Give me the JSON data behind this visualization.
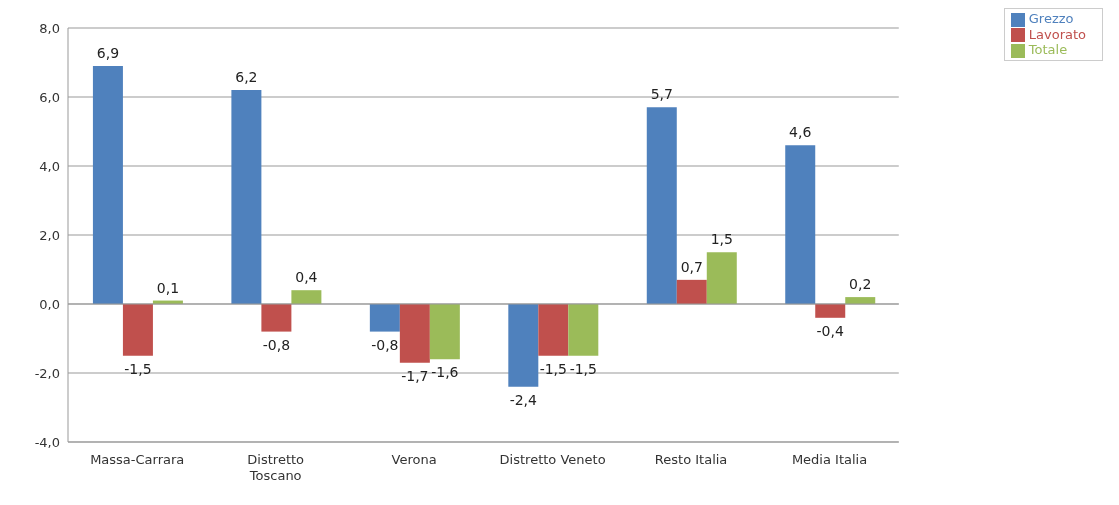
{
  "chart_data": {
    "type": "bar",
    "categories": [
      "Massa-Carrara",
      "Distretto Toscano",
      "Verona",
      "Distretto Veneto",
      "Resto Italia",
      "Media Italia"
    ],
    "series": [
      {
        "name": "Grezzo",
        "color": "#4f81bd",
        "values": [
          6.9,
          6.2,
          -0.8,
          -2.4,
          5.7,
          4.6
        ],
        "value_labels": [
          "6,9",
          "6,2",
          "-0,8",
          "-2,4",
          "5,7",
          "4,6"
        ]
      },
      {
        "name": "Lavorato",
        "color": "#c0504d",
        "values": [
          -1.5,
          -0.8,
          -1.7,
          -1.5,
          0.7,
          -0.4
        ],
        "value_labels": [
          "-1,5",
          "-0,8",
          "-1,7",
          "-1,5",
          "0,7",
          "-0,4"
        ]
      },
      {
        "name": "Totale",
        "color": "#9bbb59",
        "values": [
          0.1,
          0.4,
          -1.6,
          -1.5,
          1.5,
          0.2
        ],
        "value_labels": [
          "0,1",
          "0,4",
          "-1,6",
          "-1,5",
          "1,5",
          "0,2"
        ]
      }
    ],
    "ylim": [
      -4,
      8
    ],
    "yticks": [
      {
        "value": -4,
        "label": "-4,0"
      },
      {
        "value": -2,
        "label": "-2,0"
      },
      {
        "value": 0,
        "label": "0,0"
      },
      {
        "value": 2,
        "label": "2,0"
      },
      {
        "value": 4,
        "label": "4,0"
      },
      {
        "value": 6,
        "label": "6,0"
      },
      {
        "value": 8,
        "label": "8,0"
      }
    ],
    "grid": "y",
    "legend": "top right"
  }
}
